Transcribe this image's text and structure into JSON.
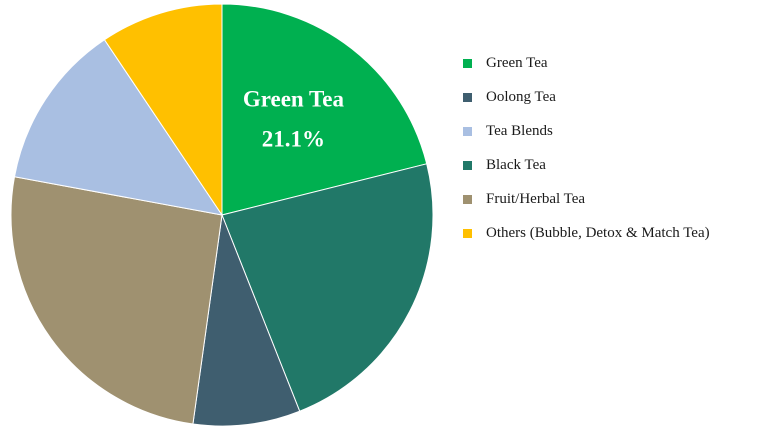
{
  "chart_data": {
    "type": "pie",
    "slices": [
      {
        "label": "Green Tea",
        "value": 21.1,
        "color": "#00b050"
      },
      {
        "label": "Black Tea",
        "value": 22.9,
        "color": "#217868"
      },
      {
        "label": "Oolong Tea",
        "value": 8.2,
        "color": "#3f5e6f"
      },
      {
        "label": "Fruit/Herbal Tea",
        "value": 25.7,
        "color": "#9f9170"
      },
      {
        "label": "Tea Blends",
        "value": 12.7,
        "color": "#a9bfe2"
      },
      {
        "label": "Others (Bubble, Detox & Match Tea)",
        "value": 9.4,
        "color": "#ffc000"
      }
    ],
    "data_labels": [
      {
        "slice": "Green Tea",
        "name": "Green Tea",
        "value_text": "21.1%"
      }
    ],
    "legend": {
      "position": "right",
      "items": [
        {
          "label": "Green Tea",
          "color": "#00b050"
        },
        {
          "label": "Oolong Tea",
          "color": "#3f5e6f"
        },
        {
          "label": "Tea Blends",
          "color": "#a9bfe2"
        },
        {
          "label": "Black Tea",
          "color": "#217868"
        },
        {
          "label": "Fruit/Herbal Tea",
          "color": "#9f9170"
        },
        {
          "label": "Others (Bubble, Detox & Match Tea)",
          "color": "#ffc000"
        }
      ]
    },
    "title": ""
  }
}
